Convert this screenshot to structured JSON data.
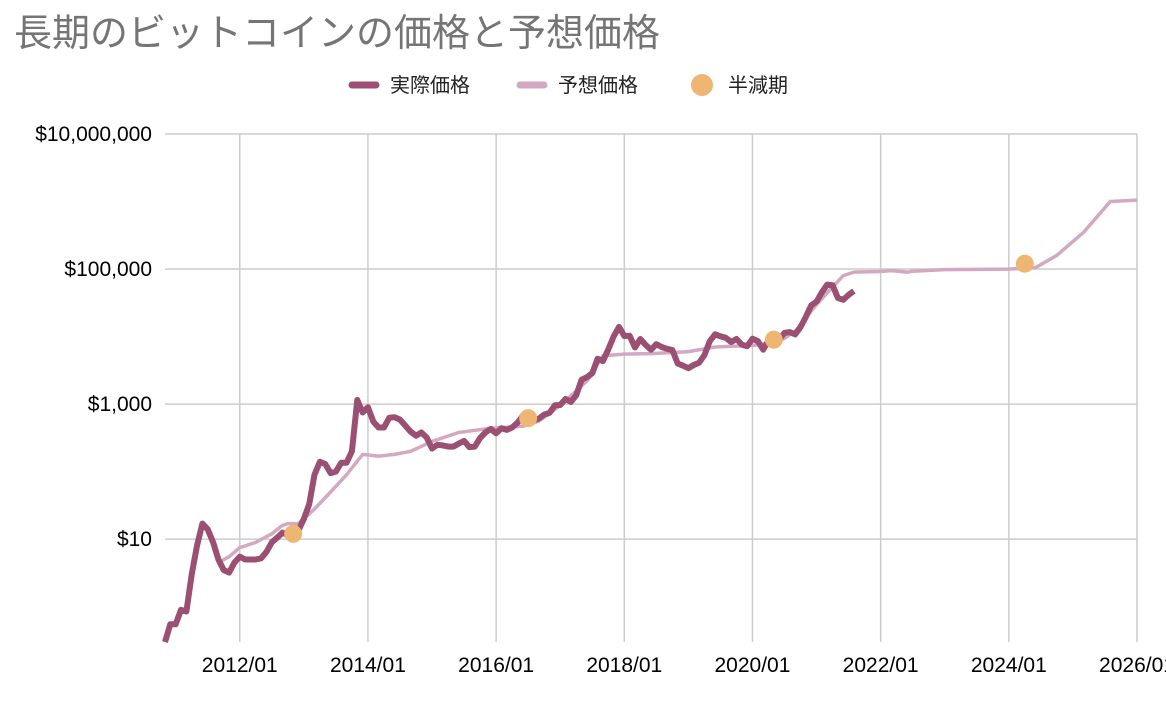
{
  "title": "長期のビットコインの価格と予想価格",
  "legend": [
    {
      "label": "実際価格",
      "color": "#9b4f72",
      "kind": "line"
    },
    {
      "label": "予想価格",
      "color": "#d2a9c1",
      "kind": "line"
    },
    {
      "label": "半減期",
      "color": "#eeb671",
      "kind": "dot"
    }
  ],
  "chart_data": {
    "type": "line",
    "title": "長期のビットコインの価格と予想価格",
    "xlabel": "",
    "ylabel": "",
    "y_scale": "log",
    "ylim": [
      0.3,
      10000000
    ],
    "xlim": [
      "2010-11",
      "2026-01"
    ],
    "grid": true,
    "legend_position": "top",
    "y_ticks": [
      {
        "value": 10,
        "label": "$10"
      },
      {
        "value": 1000,
        "label": "$1,000"
      },
      {
        "value": 100000,
        "label": "$100,000"
      },
      {
        "value": 10000000,
        "label": "$10,000,000"
      }
    ],
    "x_ticks": [
      "2012/01",
      "2014/01",
      "2016/01",
      "2018/01",
      "2020/01",
      "2022/01",
      "2024/01",
      "2026/01"
    ],
    "series": [
      {
        "name": "実際価格",
        "color": "#9b4f72",
        "points": [
          [
            "2010-11",
            0.3
          ],
          [
            "2010-12",
            0.55
          ],
          [
            "2011-01",
            0.55
          ],
          [
            "2011-02",
            0.9
          ],
          [
            "2011-03",
            0.85
          ],
          [
            "2011-04",
            3
          ],
          [
            "2011-05",
            8
          ],
          [
            "2011-06",
            17
          ],
          [
            "2011-07",
            14
          ],
          [
            "2011-08",
            9
          ],
          [
            "2011-09",
            5
          ],
          [
            "2011-10",
            3.5
          ],
          [
            "2011-11",
            3.2
          ],
          [
            "2011-12",
            4.5
          ],
          [
            "2012-01",
            5.5
          ],
          [
            "2012-02",
            5
          ],
          [
            "2012-03",
            5
          ],
          [
            "2012-04",
            5
          ],
          [
            "2012-05",
            5.2
          ],
          [
            "2012-06",
            6.5
          ],
          [
            "2012-07",
            9
          ],
          [
            "2012-08",
            10.5
          ],
          [
            "2012-09",
            12.5
          ],
          [
            "2012-10",
            11.5
          ],
          [
            "2012-11",
            12.5
          ],
          [
            "2012-12",
            13.5
          ],
          [
            "2013-01",
            20
          ],
          [
            "2013-02",
            33
          ],
          [
            "2013-03",
            90
          ],
          [
            "2013-04",
            140
          ],
          [
            "2013-05",
            130
          ],
          [
            "2013-06",
            95
          ],
          [
            "2013-07",
            100
          ],
          [
            "2013-08",
            135
          ],
          [
            "2013-09",
            135
          ],
          [
            "2013-10",
            200
          ],
          [
            "2013-11",
            1150
          ],
          [
            "2013-12",
            750
          ],
          [
            "2014-01",
            900
          ],
          [
            "2014-02",
            550
          ],
          [
            "2014-03",
            450
          ],
          [
            "2014-04",
            450
          ],
          [
            "2014-05",
            630
          ],
          [
            "2014-06",
            640
          ],
          [
            "2014-07",
            590
          ],
          [
            "2014-08",
            480
          ],
          [
            "2014-09",
            390
          ],
          [
            "2014-10",
            340
          ],
          [
            "2014-11",
            380
          ],
          [
            "2014-12",
            320
          ],
          [
            "2015-01",
            220
          ],
          [
            "2015-02",
            250
          ],
          [
            "2015-03",
            245
          ],
          [
            "2015-04",
            235
          ],
          [
            "2015-05",
            235
          ],
          [
            "2015-06",
            260
          ],
          [
            "2015-07",
            285
          ],
          [
            "2015-08",
            230
          ],
          [
            "2015-09",
            235
          ],
          [
            "2015-10",
            315
          ],
          [
            "2015-11",
            380
          ],
          [
            "2015-12",
            430
          ],
          [
            "2016-01",
            370
          ],
          [
            "2016-02",
            440
          ],
          [
            "2016-03",
            415
          ],
          [
            "2016-04",
            450
          ],
          [
            "2016-05",
            530
          ],
          [
            "2016-06",
            670
          ],
          [
            "2016-07",
            625
          ],
          [
            "2016-08",
            575
          ],
          [
            "2016-09",
            610
          ],
          [
            "2016-10",
            700
          ],
          [
            "2016-11",
            740
          ],
          [
            "2016-12",
            960
          ],
          [
            "2017-01",
            970
          ],
          [
            "2017-02",
            1190
          ],
          [
            "2017-03",
            1080
          ],
          [
            "2017-04",
            1350
          ],
          [
            "2017-05",
            2300
          ],
          [
            "2017-06",
            2500
          ],
          [
            "2017-07",
            2870
          ],
          [
            "2017-08",
            4700
          ],
          [
            "2017-09",
            4340
          ],
          [
            "2017-10",
            6470
          ],
          [
            "2017-11",
            10000
          ],
          [
            "2017-12",
            13900
          ],
          [
            "2018-01",
            10200
          ],
          [
            "2018-02",
            10300
          ],
          [
            "2018-03",
            6900
          ],
          [
            "2018-04",
            9200
          ],
          [
            "2018-05",
            7500
          ],
          [
            "2018-06",
            6400
          ],
          [
            "2018-07",
            7700
          ],
          [
            "2018-08",
            7000
          ],
          [
            "2018-09",
            6600
          ],
          [
            "2018-10",
            6300
          ],
          [
            "2018-11",
            4000
          ],
          [
            "2018-12",
            3700
          ],
          [
            "2019-01",
            3400
          ],
          [
            "2019-02",
            3800
          ],
          [
            "2019-03",
            4100
          ],
          [
            "2019-04",
            5300
          ],
          [
            "2019-05",
            8500
          ],
          [
            "2019-06",
            10800
          ],
          [
            "2019-07",
            10100
          ],
          [
            "2019-08",
            9600
          ],
          [
            "2019-09",
            8300
          ],
          [
            "2019-10",
            9200
          ],
          [
            "2019-11",
            7600
          ],
          [
            "2019-12",
            7200
          ],
          [
            "2020-01",
            9300
          ],
          [
            "2020-02",
            8600
          ],
          [
            "2020-03",
            6400
          ],
          [
            "2020-04",
            8800
          ],
          [
            "2020-05",
            9450
          ],
          [
            "2020-06",
            9140
          ],
          [
            "2020-07",
            11350
          ],
          [
            "2020-08",
            11650
          ],
          [
            "2020-09",
            10780
          ],
          [
            "2020-10",
            13800
          ],
          [
            "2020-11",
            19700
          ],
          [
            "2020-12",
            29000
          ],
          [
            "2021-01",
            33100
          ],
          [
            "2021-02",
            45200
          ],
          [
            "2021-03",
            58800
          ],
          [
            "2021-04",
            57700
          ],
          [
            "2021-05",
            37300
          ],
          [
            "2021-06",
            35000
          ],
          [
            "2021-07",
            41500
          ],
          [
            "2021-08",
            47100
          ]
        ]
      },
      {
        "name": "予想価格",
        "color": "#d2a9c1",
        "points": [
          [
            "2011-09",
            4.5
          ],
          [
            "2011-11",
            5.5
          ],
          [
            "2012-01",
            7.5
          ],
          [
            "2012-04",
            9
          ],
          [
            "2012-07",
            12
          ],
          [
            "2012-09",
            16
          ],
          [
            "2012-10",
            17
          ],
          [
            "2012-12",
            17
          ],
          [
            "2013-03",
            28
          ],
          [
            "2013-06",
            50
          ],
          [
            "2013-09",
            90
          ],
          [
            "2013-12",
            180
          ],
          [
            "2014-03",
            170
          ],
          [
            "2014-06",
            180
          ],
          [
            "2014-09",
            200
          ],
          [
            "2015-01",
            280
          ],
          [
            "2015-06",
            380
          ],
          [
            "2015-12",
            440
          ],
          [
            "2016-06",
            470
          ],
          [
            "2016-09",
            560
          ],
          [
            "2017-01",
            950
          ],
          [
            "2017-06",
            2200
          ],
          [
            "2017-09",
            5200
          ],
          [
            "2018-01",
            5500
          ],
          [
            "2018-06",
            5600
          ],
          [
            "2019-01",
            6000
          ],
          [
            "2019-06",
            7000
          ],
          [
            "2020-01",
            7400
          ],
          [
            "2020-06",
            8400
          ],
          [
            "2020-09",
            12000
          ],
          [
            "2021-01",
            30000
          ],
          [
            "2021-06",
            80000
          ],
          [
            "2021-08",
            90000
          ],
          [
            "2022-01",
            92000
          ],
          [
            "2022-03",
            95000
          ],
          [
            "2022-06",
            90000
          ],
          [
            "2022-07",
            93000
          ],
          [
            "2023-01",
            98000
          ],
          [
            "2024-01",
            100000
          ],
          [
            "2024-06",
            105000
          ],
          [
            "2024-10",
            160000
          ],
          [
            "2025-03",
            350000
          ],
          [
            "2025-08",
            1000000
          ],
          [
            "2026-01",
            1050000
          ]
        ]
      }
    ],
    "halving_points": [
      {
        "date": "2012-11",
        "value": 12
      },
      {
        "date": "2016-07",
        "value": 620
      },
      {
        "date": "2020-05",
        "value": 9000
      },
      {
        "date": "2024-04",
        "value": 120000
      }
    ]
  }
}
